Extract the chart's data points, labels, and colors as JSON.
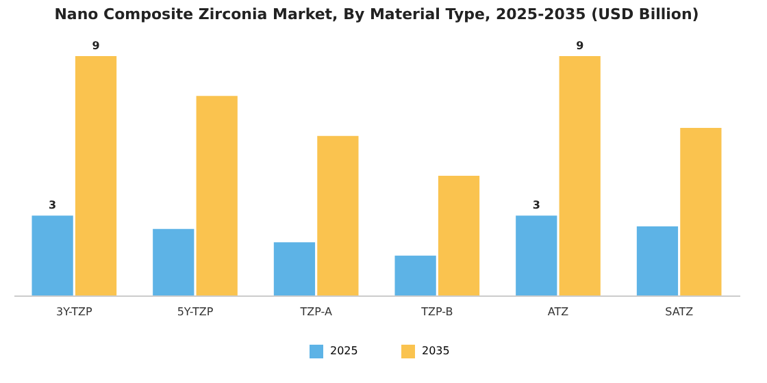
{
  "chart_data": {
    "type": "bar",
    "title": "Nano Composite Zirconia Market, By Material Type, 2025-2035 (USD Billion)",
    "categories": [
      "3Y-TZP",
      "5Y-TZP",
      "TZP-A",
      "TZP-B",
      "ATZ",
      "SATZ"
    ],
    "series": [
      {
        "name": "2025",
        "color": "#5db3e6",
        "values": [
          3,
          2.5,
          2,
          1.5,
          3,
          2.6
        ],
        "value_labels": [
          "3",
          null,
          null,
          null,
          "3",
          null
        ]
      },
      {
        "name": "2035",
        "color": "#fac34f",
        "values": [
          9,
          7.5,
          6,
          4.5,
          9,
          6.3
        ],
        "value_labels": [
          "9",
          null,
          null,
          null,
          "9",
          null
        ]
      }
    ],
    "legend": "bottom",
    "grid": false
  }
}
